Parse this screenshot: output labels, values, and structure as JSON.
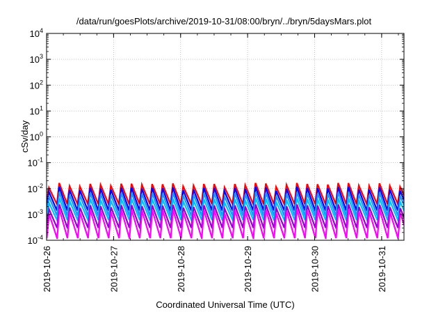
{
  "chart_data": {
    "type": "line",
    "title": "/data/run/goesPlots/archive/2019-10-31/08:00/bryn/../bryn/5daysMars.plot",
    "xlabel": "Coordinated Universal Time (UTC)",
    "ylabel": "cSv/day",
    "yscale": "log",
    "ylim": [
      0.0001,
      10000
    ],
    "xlim": [
      "2019-10-26T00:00",
      "2019-10-31T08:00"
    ],
    "grid": true,
    "x_ticks": [
      "2019-10-26",
      "2019-10-27",
      "2019-10-28",
      "2019-10-29",
      "2019-10-30",
      "2019-10-31"
    ],
    "y_ticks": [
      {
        "mantissa": "10",
        "exp": "-4"
      },
      {
        "mantissa": "10",
        "exp": "-3"
      },
      {
        "mantissa": "10",
        "exp": "-2"
      },
      {
        "mantissa": "10",
        "exp": "-1"
      },
      {
        "mantissa": "10",
        "exp": "0"
      },
      {
        "mantissa": "10",
        "exp": "1"
      },
      {
        "mantissa": "10",
        "exp": "2"
      },
      {
        "mantissa": "10",
        "exp": "3"
      },
      {
        "mantissa": "10",
        "exp": "4"
      }
    ],
    "cycle_hours": 3.7,
    "series": [
      {
        "color": "#ff0000",
        "peak": 0.0135,
        "trough": 0.0025
      },
      {
        "color": "#0000ff",
        "peak": 0.0095,
        "trough": 0.0014
      },
      {
        "color": "#1e90ff",
        "peak": 0.006,
        "trough": 0.0009
      },
      {
        "color": "#00bfff",
        "peak": 0.0035,
        "trough": 0.0006
      },
      {
        "color": "#9400d3",
        "peak": 0.002,
        "trough": 0.0003
      },
      {
        "color": "#ff00ff",
        "peak": 0.0013,
        "trough": 0.00012
      }
    ]
  }
}
